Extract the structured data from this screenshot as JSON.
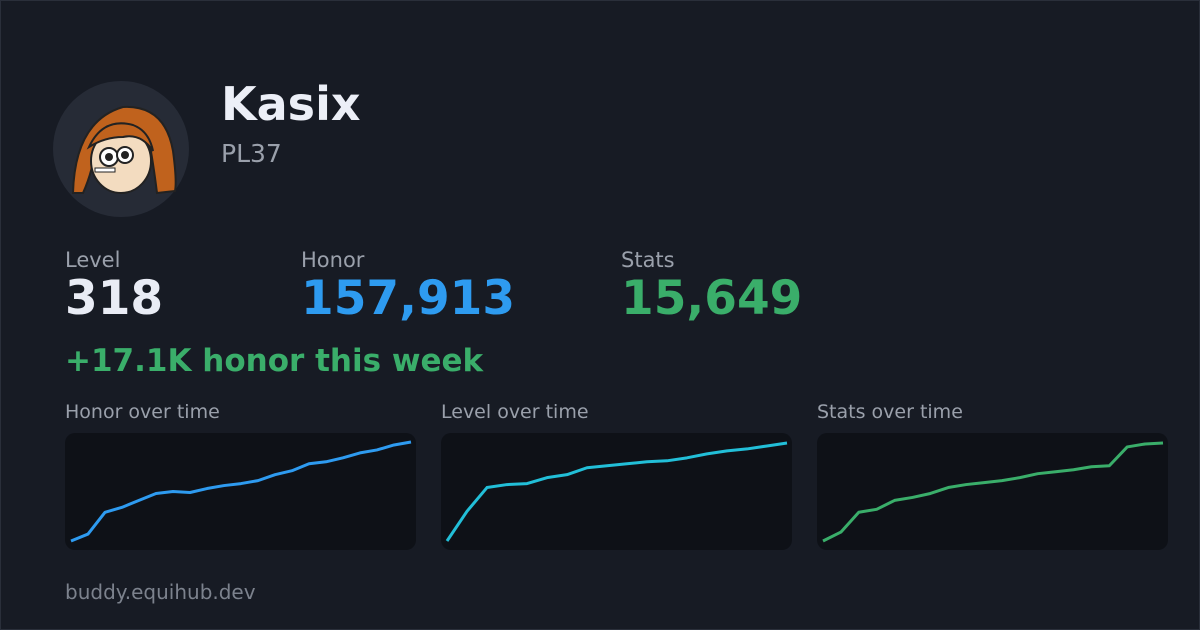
{
  "profile": {
    "name": "Kasix",
    "tag": "PL37"
  },
  "stats": [
    {
      "label": "Level",
      "value": "318",
      "color": "#e9ecf5"
    },
    {
      "label": "Honor",
      "value": "157,913",
      "color": "#2e9bf0"
    },
    {
      "label": "Stats",
      "value": "15,649",
      "color": "#3aae6a"
    }
  ],
  "weekly": "+17.1K honor this week",
  "charts": [
    {
      "type": "line",
      "title": "Honor over time",
      "color": "#2e9bf0",
      "ylim": [
        0,
        100
      ],
      "values": [
        0,
        7,
        29,
        34,
        41,
        48,
        50,
        49,
        53,
        56,
        58,
        61,
        67,
        71,
        78,
        80,
        84,
        89,
        92,
        97,
        100
      ]
    },
    {
      "type": "line",
      "title": "Level over time",
      "color": "#22bfd8",
      "ylim": [
        0,
        100
      ],
      "values": [
        0,
        30,
        54,
        57,
        58,
        64,
        67,
        74,
        76,
        78,
        80,
        81,
        84,
        88,
        91,
        93,
        96,
        99
      ]
    },
    {
      "type": "line",
      "title": "Stats over time",
      "color": "#3aae6a",
      "ylim": [
        0,
        100
      ],
      "values": [
        0,
        9,
        29,
        32,
        41,
        44,
        48,
        54,
        57,
        59,
        61,
        64,
        68,
        70,
        72,
        75,
        76,
        95,
        98,
        99
      ]
    }
  ],
  "footer": "buddy.equihub.dev"
}
